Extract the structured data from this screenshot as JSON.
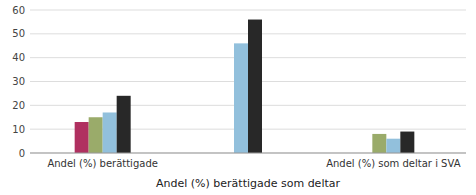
{
  "chart_data": {
    "type": "bar",
    "x_label": "Andel (%) berättigade som deltar",
    "categories": [
      "Andel (%) berättigade",
      null,
      "Andel (%) som deltar i SVA"
    ],
    "series": [
      {
        "color": "#b03060",
        "values": [
          13,
          null,
          null
        ]
      },
      {
        "color": "#9aab6a",
        "values": [
          15,
          null,
          8
        ]
      },
      {
        "color": "#92c0dc",
        "values": [
          17,
          46,
          6
        ]
      },
      {
        "color": "#282828",
        "values": [
          24,
          56,
          9
        ]
      }
    ],
    "ylim": [
      0,
      60
    ],
    "yticks": [
      0,
      10,
      20,
      30,
      40,
      50,
      60
    ],
    "grid": true
  }
}
